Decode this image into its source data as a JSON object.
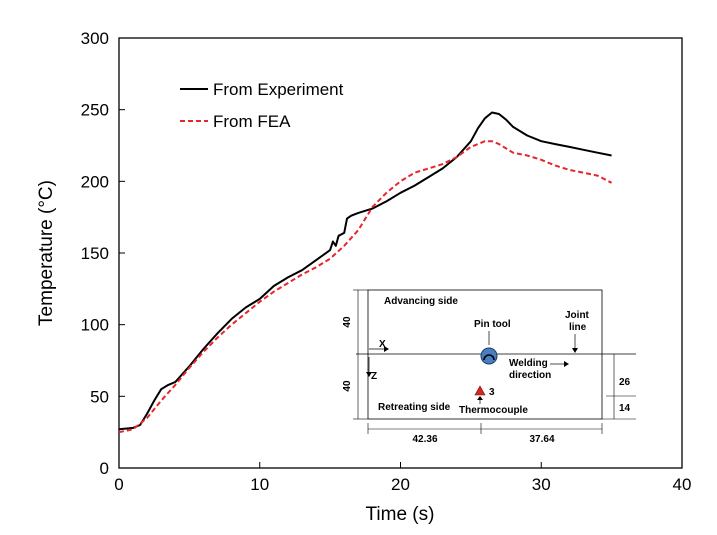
{
  "chart_data": {
    "type": "line",
    "xlabel": "Time (s)",
    "ylabel": "Temperature (°C)",
    "xlim": [
      0,
      40
    ],
    "ylim": [
      0,
      300
    ],
    "xticks": [
      0,
      10,
      20,
      30,
      40
    ],
    "yticks": [
      0,
      50,
      100,
      150,
      200,
      250,
      300
    ],
    "grid": false,
    "legend": "top-left",
    "series": [
      {
        "name": "From Experiment",
        "color": "#000000",
        "style": "solid",
        "x": [
          0,
          1,
          1.5,
          2,
          2.5,
          3,
          3.5,
          4,
          5,
          6,
          7,
          8,
          9,
          10,
          11,
          12,
          13,
          14,
          15,
          15.2,
          15.4,
          15.6,
          16,
          16.2,
          16.5,
          17,
          18,
          19,
          20,
          21,
          22,
          23,
          24,
          25,
          25.5,
          26,
          26.5,
          27,
          27.5,
          28,
          29,
          30,
          31,
          32,
          33,
          34,
          35
        ],
        "y": [
          27,
          28,
          30,
          38,
          47,
          55,
          58,
          60,
          71,
          83,
          94,
          104,
          112,
          118,
          127,
          133,
          138,
          145,
          152,
          158,
          155,
          162,
          164,
          174,
          176,
          178,
          181,
          186,
          192,
          197,
          203,
          209,
          217,
          228,
          237,
          244,
          248,
          247,
          243,
          238,
          232,
          228,
          226,
          224,
          222,
          220,
          218
        ]
      },
      {
        "name": "From FEA",
        "color": "#e8252a",
        "style": "dashed",
        "x": [
          0,
          1,
          2,
          3,
          4,
          5,
          6,
          7,
          8,
          9,
          10,
          11,
          12,
          13,
          14,
          15,
          16,
          17,
          18,
          19,
          20,
          21,
          22,
          23,
          24,
          25,
          26,
          26.5,
          27,
          28,
          29,
          30,
          31,
          32,
          33,
          34,
          35
        ],
        "y": [
          25,
          27,
          35,
          47,
          58,
          70,
          81,
          91,
          100,
          108,
          116,
          123,
          129,
          135,
          140,
          146,
          155,
          166,
          182,
          192,
          200,
          206,
          209,
          212,
          217,
          224,
          228,
          228,
          226,
          220,
          218,
          215,
          211,
          208,
          206,
          204,
          199
        ]
      }
    ]
  },
  "inset": {
    "advancing_side": "Advancing side",
    "pin_tool": "Pin tool",
    "joint_line_1": "Joint",
    "joint_line_2": "line",
    "x_axis": "X",
    "z_axis": "Z",
    "welding_direction_1": "Welding",
    "welding_direction_2": "direction",
    "thermocouple_number": "3",
    "retreating_side": "Retreating side",
    "thermocouple": "Thermocouple",
    "dim_top": "40",
    "dim_bottom": "40",
    "dim_right_top": "26",
    "dim_right_bottom": "14",
    "dim_left_width": "42.36",
    "dim_right_width": "37.64"
  }
}
